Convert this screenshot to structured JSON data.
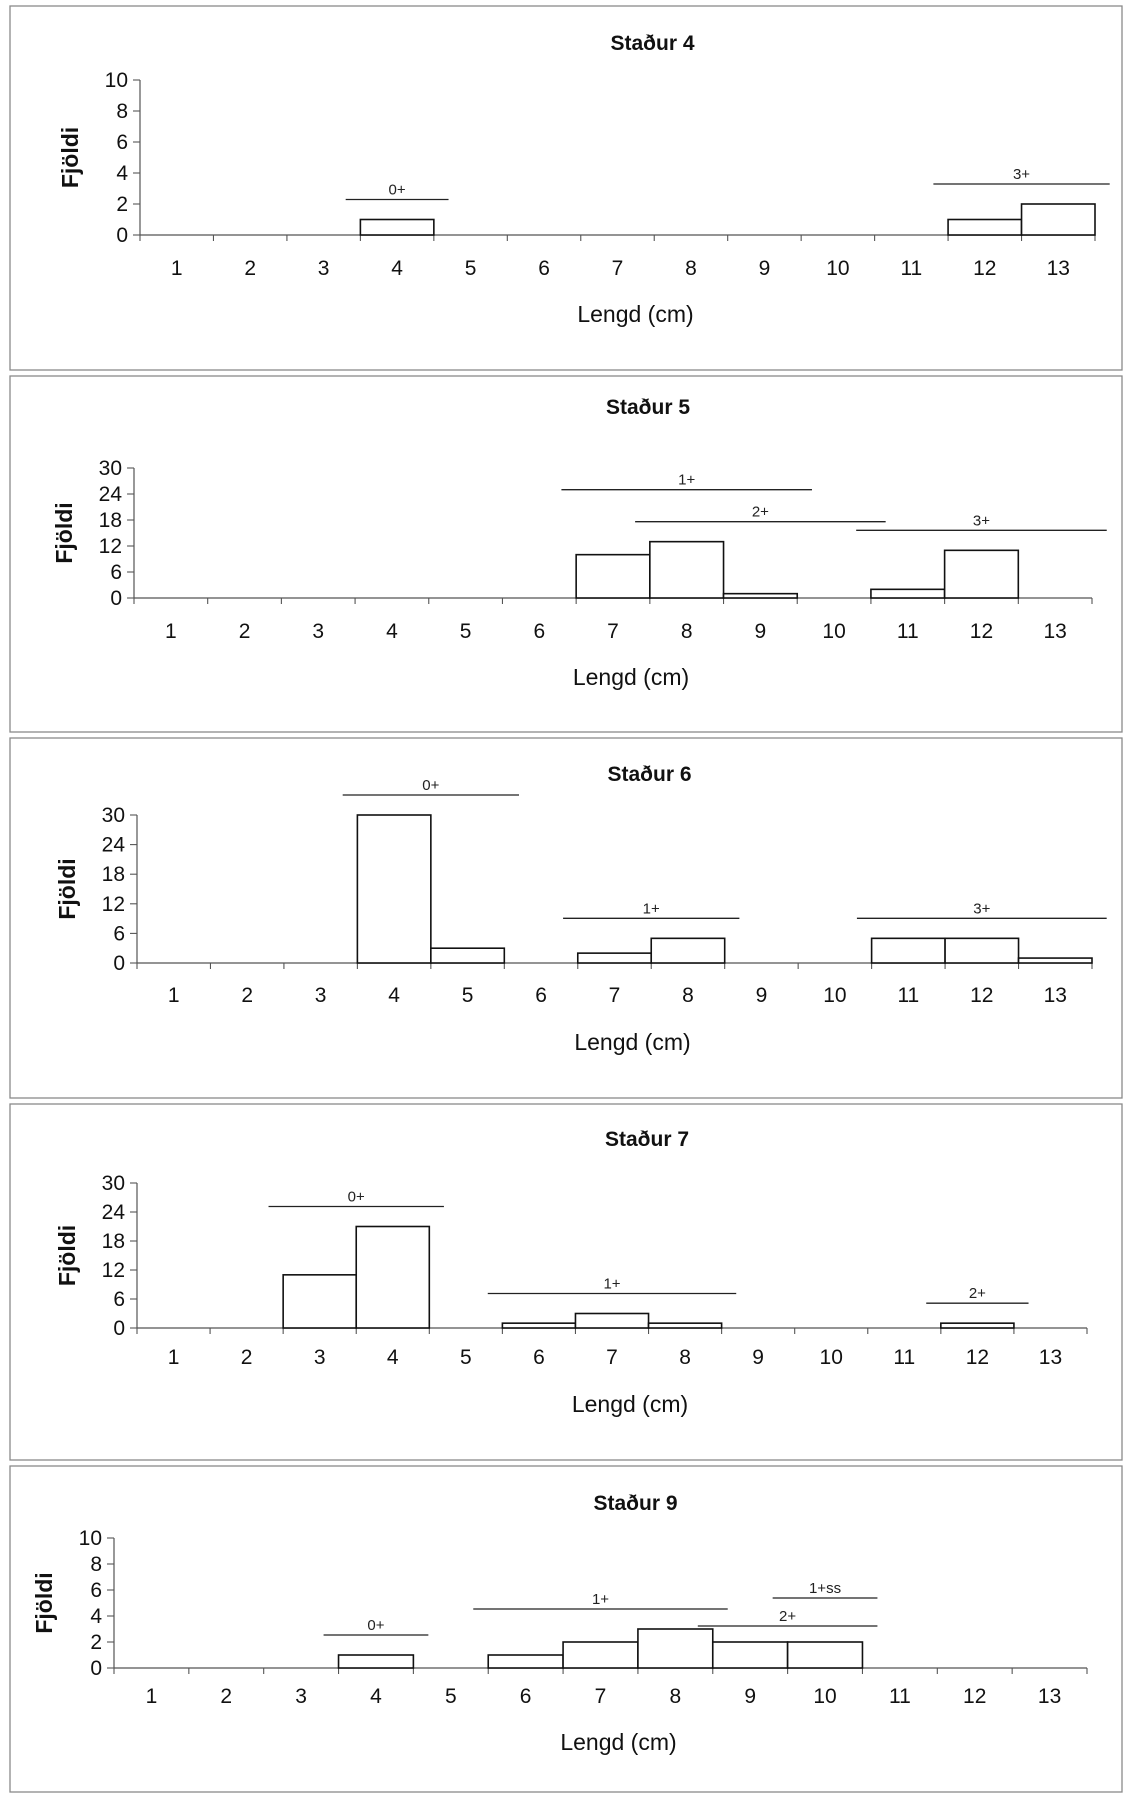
{
  "chart_data": [
    {
      "type": "bar",
      "title": "Staður 4",
      "xlabel": "Lengd (cm)",
      "ylabel": "Fjöldi",
      "categories": [
        "1",
        "2",
        "3",
        "4",
        "5",
        "6",
        "7",
        "8",
        "9",
        "10",
        "11",
        "12",
        "13"
      ],
      "values": [
        0,
        0,
        0,
        1,
        0,
        0,
        0,
        0,
        0,
        0,
        0,
        1,
        2
      ],
      "ylim": [
        0,
        10
      ],
      "yticks": [
        0,
        2,
        4,
        6,
        8,
        10
      ],
      "grid": false,
      "annotations": [
        {
          "label": "0+",
          "from": "4",
          "to": "4"
        },
        {
          "label": "3+",
          "from": "12",
          "to": "13"
        }
      ]
    },
    {
      "type": "bar",
      "title": "Staður 5",
      "xlabel": "Lengd (cm)",
      "ylabel": "Fjöldi",
      "categories": [
        "1",
        "2",
        "3",
        "4",
        "5",
        "6",
        "7",
        "8",
        "9",
        "10",
        "11",
        "12",
        "13"
      ],
      "values": [
        0,
        0,
        0,
        0,
        0,
        0,
        10,
        13,
        1,
        0,
        2,
        11,
        0
      ],
      "ylim": [
        0,
        30
      ],
      "yticks": [
        0,
        6,
        12,
        18,
        24,
        30
      ],
      "grid": false,
      "annotations": [
        {
          "label": "1+",
          "from": "7",
          "to": "9"
        },
        {
          "label": "2+",
          "from": "8",
          "to": "10"
        },
        {
          "label": "3+",
          "from": "11",
          "to": "13"
        }
      ]
    },
    {
      "type": "bar",
      "title": "Staður 6",
      "xlabel": "Lengd (cm)",
      "ylabel": "Fjöldi",
      "categories": [
        "1",
        "2",
        "3",
        "4",
        "5",
        "6",
        "7",
        "8",
        "9",
        "10",
        "11",
        "12",
        "13"
      ],
      "values": [
        0,
        0,
        0,
        30,
        3,
        0,
        2,
        5,
        0,
        0,
        5,
        5,
        1
      ],
      "ylim": [
        0,
        30
      ],
      "yticks": [
        0,
        6,
        12,
        18,
        24,
        30
      ],
      "grid": false,
      "annotations": [
        {
          "label": "0+",
          "from": "4",
          "to": "5"
        },
        {
          "label": "1+",
          "from": "7",
          "to": "8"
        },
        {
          "label": "3+",
          "from": "11",
          "to": "13"
        }
      ]
    },
    {
      "type": "bar",
      "title": "Staður 7",
      "xlabel": "Lengd (cm)",
      "ylabel": "Fjöldi",
      "categories": [
        "1",
        "2",
        "3",
        "4",
        "5",
        "6",
        "7",
        "8",
        "9",
        "10",
        "11",
        "12",
        "13"
      ],
      "values": [
        0,
        0,
        11,
        21,
        0,
        1,
        3,
        1,
        0,
        0,
        0,
        1,
        0
      ],
      "ylim": [
        0,
        30
      ],
      "yticks": [
        0,
        6,
        12,
        18,
        24,
        30
      ],
      "grid": false,
      "annotations": [
        {
          "label": "0+",
          "from": "3",
          "to": "4"
        },
        {
          "label": "1+",
          "from": "6",
          "to": "8"
        },
        {
          "label": "2+",
          "from": "12",
          "to": "12"
        }
      ]
    },
    {
      "type": "bar",
      "title": "Staður 9",
      "xlabel": "Lengd (cm)",
      "ylabel": "Fjöldi",
      "categories": [
        "1",
        "2",
        "3",
        "4",
        "5",
        "6",
        "7",
        "8",
        "9",
        "10",
        "11",
        "12",
        "13"
      ],
      "values": [
        0,
        0,
        0,
        1,
        0,
        1,
        2,
        3,
        2,
        2,
        0,
        0,
        0
      ],
      "ylim": [
        0,
        10
      ],
      "yticks": [
        0,
        2,
        4,
        6,
        8,
        10
      ],
      "grid": false,
      "annotations": [
        {
          "label": "0+",
          "from": "4",
          "to": "4"
        },
        {
          "label": "1+",
          "from": "6",
          "to": "8"
        },
        {
          "label": "2+",
          "from": "9",
          "to": "10"
        },
        {
          "label": "1+ss",
          "from": "10",
          "to": "10"
        }
      ]
    }
  ]
}
